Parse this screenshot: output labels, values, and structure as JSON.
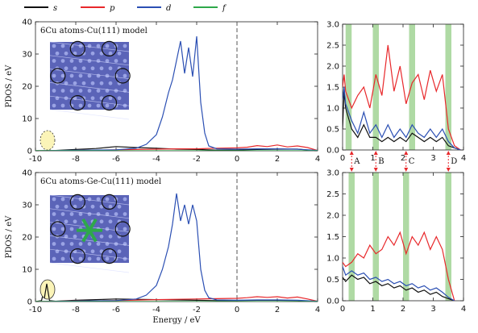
{
  "legend": {
    "position": "top",
    "entries": [
      {
        "name": "s",
        "color": "#111111"
      },
      {
        "name": "p",
        "color": "#e8282b"
      },
      {
        "name": "d",
        "color": "#2b4fb3"
      },
      {
        "name": "f",
        "color": "#2ea84a"
      }
    ]
  },
  "colors": {
    "band": "#a6d69a",
    "dashed": "#555555",
    "arrow": "#e8282b",
    "circle": "#111111",
    "highlight": "#fbf4b8",
    "inset_bg": "#5b64b8"
  },
  "chart_data": [
    {
      "type": "line",
      "title": "6Cu atoms-Cu(111) model",
      "xlabel": "",
      "ylabel": "PDOS / eV",
      "xlim": [
        -10,
        4
      ],
      "ylim": [
        0,
        40
      ],
      "xticks": [
        "-10",
        "-8",
        "-6",
        "-4",
        "-2",
        "0",
        "2",
        "4"
      ],
      "yticks": [
        "0",
        "10",
        "20",
        "30",
        "40"
      ],
      "fermi_level": 0,
      "series": [
        {
          "name": "s",
          "x": [
            -10,
            -9,
            -8,
            -7,
            -6.5,
            -6,
            -5,
            -4,
            -3,
            -2,
            -1,
            0,
            1,
            2,
            3,
            4
          ],
          "y": [
            0,
            0.1,
            0.4,
            0.7,
            1.0,
            1.3,
            1.0,
            0.8,
            0.5,
            0.4,
            0.2,
            0.2,
            0.4,
            0.5,
            0.5,
            0
          ]
        },
        {
          "name": "p",
          "x": [
            -10,
            -8,
            -6,
            -4,
            -3,
            -2,
            -1,
            0,
            0.5,
            1,
            1.5,
            2,
            2.5,
            3,
            3.5,
            4
          ],
          "y": [
            0,
            0.1,
            0.3,
            0.5,
            0.6,
            0.6,
            0.8,
            0.9,
            1.1,
            1.6,
            1.3,
            1.8,
            1.2,
            1.5,
            1.0,
            0.1
          ]
        },
        {
          "name": "d",
          "x": [
            -10,
            -6,
            -5,
            -4.5,
            -4,
            -3.7,
            -3.4,
            -3.2,
            -3.0,
            -2.8,
            -2.6,
            -2.4,
            -2.2,
            -2.0,
            -1.8,
            -1.6,
            -1.4,
            -1.0,
            0,
            1,
            2,
            3,
            4
          ],
          "y": [
            0,
            0.3,
            0.8,
            2.0,
            5.0,
            10.5,
            18.0,
            22.0,
            28.0,
            34.0,
            24.0,
            32.0,
            23.0,
            35.5,
            15.0,
            5.5,
            1.5,
            0.6,
            0.5,
            0.6,
            0.6,
            0.5,
            0.1
          ]
        },
        {
          "name": "f",
          "x": [
            -10,
            4
          ],
          "y": [
            0,
            0
          ]
        }
      ]
    },
    {
      "type": "line",
      "title": "",
      "xlabel": "",
      "ylabel": "",
      "xlim": [
        0,
        4
      ],
      "ylim": [
        0,
        3.0
      ],
      "xticks": [
        "0",
        "1",
        "2",
        "3",
        "4"
      ],
      "yticks": [
        "0.0",
        "0.5",
        "1.0",
        "1.5",
        "2.0",
        "2.5",
        "3.0"
      ],
      "series": [
        {
          "name": "s",
          "x": [
            0,
            0.05,
            0.1,
            0.3,
            0.5,
            0.7,
            0.9,
            1.1,
            1.3,
            1.5,
            1.7,
            1.9,
            2.1,
            2.3,
            2.5,
            2.7,
            2.9,
            3.1,
            3.3,
            3.5,
            3.7,
            3.9
          ],
          "y": [
            0.5,
            1.4,
            1.0,
            0.5,
            0.3,
            0.6,
            0.3,
            0.3,
            0.2,
            0.3,
            0.2,
            0.3,
            0.2,
            0.4,
            0.3,
            0.2,
            0.3,
            0.2,
            0.3,
            0.1,
            0.05,
            0.0
          ]
        },
        {
          "name": "p",
          "x": [
            0,
            0.05,
            0.1,
            0.3,
            0.5,
            0.7,
            0.9,
            1.1,
            1.3,
            1.5,
            1.7,
            1.9,
            2.1,
            2.3,
            2.5,
            2.7,
            2.9,
            3.1,
            3.3,
            3.5,
            3.7,
            3.9
          ],
          "y": [
            1.5,
            1.8,
            1.4,
            1.0,
            1.3,
            1.5,
            1.0,
            1.8,
            1.3,
            2.5,
            1.4,
            2.0,
            1.1,
            1.6,
            1.8,
            1.2,
            1.9,
            1.4,
            1.8,
            0.5,
            0.1,
            0.0
          ]
        },
        {
          "name": "d",
          "x": [
            0,
            0.05,
            0.1,
            0.3,
            0.5,
            0.7,
            0.9,
            1.1,
            1.3,
            1.5,
            1.7,
            1.9,
            2.1,
            2.3,
            2.5,
            2.7,
            2.9,
            3.1,
            3.3,
            3.5,
            3.7,
            3.9
          ],
          "y": [
            1.2,
            1.5,
            1.1,
            0.7,
            0.4,
            0.9,
            0.4,
            0.6,
            0.3,
            0.6,
            0.3,
            0.5,
            0.3,
            0.6,
            0.4,
            0.3,
            0.5,
            0.3,
            0.5,
            0.2,
            0.05,
            0.0
          ]
        }
      ],
      "bands_x": [
        0.2,
        1.1,
        2.3,
        3.5
      ]
    },
    {
      "type": "line",
      "title": "6Cu atoms-Ge-Cu(111) model",
      "xlabel": "Energy / eV",
      "ylabel": "PDOS / eV",
      "xlim": [
        -10,
        4
      ],
      "ylim": [
        0,
        40
      ],
      "xticks": [
        "-10",
        "-8",
        "-6",
        "-4",
        "-2",
        "0",
        "2",
        "4"
      ],
      "yticks": [
        "0",
        "10",
        "20",
        "30",
        "40"
      ],
      "fermi_level": 0,
      "series": [
        {
          "name": "s",
          "x": [
            -10,
            -9.7,
            -9.5,
            -9.3,
            -9,
            -8,
            -7,
            -6,
            -5,
            -4,
            -3,
            -2,
            -1,
            0,
            1,
            2,
            3,
            3.5,
            4
          ],
          "y": [
            0,
            0.3,
            5.5,
            0.3,
            0.1,
            0.4,
            0.6,
            0.8,
            0.7,
            0.6,
            0.5,
            0.4,
            0.3,
            0.3,
            0.4,
            0.4,
            0.3,
            0.1,
            0
          ]
        },
        {
          "name": "p",
          "x": [
            -10,
            -8,
            -6,
            -4,
            -3,
            -2,
            -1,
            0,
            0.5,
            1,
            1.5,
            2,
            2.5,
            3,
            3.5,
            4
          ],
          "y": [
            0,
            0.2,
            0.3,
            0.6,
            0.7,
            0.8,
            0.9,
            1.0,
            1.2,
            1.5,
            1.3,
            1.5,
            1.1,
            1.4,
            0.8,
            0.1
          ]
        },
        {
          "name": "d",
          "x": [
            -10,
            -6,
            -5,
            -4.5,
            -4,
            -3.7,
            -3.4,
            -3.2,
            -3.0,
            -2.8,
            -2.6,
            -2.4,
            -2.2,
            -2.0,
            -1.8,
            -1.6,
            -1.4,
            -1.0,
            0,
            1,
            2,
            3,
            4
          ],
          "y": [
            0,
            0.3,
            0.8,
            2.0,
            5.0,
            10.0,
            17.0,
            24.0,
            33.5,
            25.0,
            30.0,
            24.0,
            30.0,
            25.0,
            10.0,
            3.5,
            1.2,
            0.5,
            0.4,
            0.5,
            0.5,
            0.4,
            0.1
          ]
        },
        {
          "name": "f",
          "x": [
            -10,
            4
          ],
          "y": [
            0,
            0
          ]
        }
      ]
    },
    {
      "type": "line",
      "title": "",
      "xlabel": "",
      "ylabel": "",
      "xlim": [
        0,
        4
      ],
      "ylim": [
        0,
        3.0
      ],
      "xticks": [
        "0",
        "1",
        "2",
        "3",
        "4"
      ],
      "yticks": [
        "0.0",
        "0.5",
        "1.0",
        "1.5",
        "2.0",
        "2.5",
        "3.0"
      ],
      "series": [
        {
          "name": "s",
          "x": [
            0,
            0.1,
            0.3,
            0.5,
            0.7,
            0.9,
            1.1,
            1.3,
            1.5,
            1.7,
            1.9,
            2.1,
            2.3,
            2.5,
            2.7,
            2.9,
            3.1,
            3.3,
            3.5,
            3.7
          ],
          "y": [
            0.55,
            0.45,
            0.6,
            0.5,
            0.55,
            0.4,
            0.45,
            0.35,
            0.4,
            0.3,
            0.35,
            0.25,
            0.3,
            0.2,
            0.25,
            0.15,
            0.2,
            0.1,
            0.05,
            0.0
          ]
        },
        {
          "name": "p",
          "x": [
            0,
            0.1,
            0.3,
            0.5,
            0.7,
            0.9,
            1.1,
            1.3,
            1.5,
            1.7,
            1.9,
            2.1,
            2.3,
            2.5,
            2.7,
            2.9,
            3.1,
            3.3,
            3.5,
            3.7
          ],
          "y": [
            0.9,
            0.8,
            0.9,
            1.1,
            1.0,
            1.3,
            1.1,
            1.2,
            1.5,
            1.3,
            1.6,
            1.1,
            1.5,
            1.3,
            1.6,
            1.2,
            1.5,
            1.2,
            0.5,
            0.0
          ]
        },
        {
          "name": "d",
          "x": [
            0,
            0.1,
            0.3,
            0.5,
            0.7,
            0.9,
            1.1,
            1.3,
            1.5,
            1.7,
            1.9,
            2.1,
            2.3,
            2.5,
            2.7,
            2.9,
            3.1,
            3.3,
            3.5,
            3.7
          ],
          "y": [
            0.8,
            0.6,
            0.7,
            0.6,
            0.65,
            0.5,
            0.55,
            0.45,
            0.5,
            0.4,
            0.45,
            0.35,
            0.4,
            0.3,
            0.35,
            0.25,
            0.3,
            0.2,
            0.08,
            0.0
          ]
        }
      ],
      "bands_x": [
        0.3,
        1.1,
        2.1,
        3.5
      ]
    }
  ],
  "markers": [
    {
      "label": "A",
      "x": 0.3
    },
    {
      "label": "B",
      "x": 1.1
    },
    {
      "label": "C",
      "x": 2.1
    },
    {
      "label": "D",
      "x": 3.5
    }
  ],
  "axis_label_bottom": "Energy / eV"
}
